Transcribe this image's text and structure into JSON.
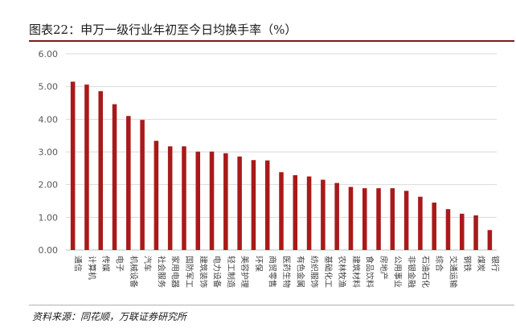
{
  "title": "图表22：申万一级行业年初至今日均换手率（%）",
  "source": "资料来源：同花顺，万联证券研究所",
  "colors": {
    "bar": "#a81a1a",
    "title_rule": "#7a1c1c",
    "grid": "#d9d9d9"
  },
  "chart_data": {
    "type": "bar",
    "title": "图表22：申万一级行业年初至今日均换手率（%）",
    "xlabel": "",
    "ylabel": "",
    "ylim": [
      0,
      6
    ],
    "yticks": [
      "0.00",
      "1.00",
      "2.00",
      "3.00",
      "4.00",
      "5.00",
      "6.00"
    ],
    "grid": true,
    "legend": "none",
    "categories": [
      "通信",
      "计算机",
      "传媒",
      "电子",
      "机械设备",
      "汽车",
      "社会服务",
      "家用电器",
      "国防军工",
      "建筑装饰",
      "电力设备",
      "轻工制造",
      "美容护理",
      "环保",
      "商贸零售",
      "医药生物",
      "有色金属",
      "纺织服饰",
      "基础化工",
      "农林牧渔",
      "建筑材料",
      "食品饮料",
      "房地产",
      "公用事业",
      "非银金融",
      "石油石化",
      "综合",
      "交通运输",
      "钢铁",
      "煤炭",
      "银行"
    ],
    "values": [
      5.15,
      5.06,
      4.86,
      4.46,
      4.1,
      3.98,
      3.34,
      3.17,
      3.17,
      3.01,
      3.01,
      2.96,
      2.86,
      2.75,
      2.74,
      2.38,
      2.29,
      2.25,
      2.15,
      2.05,
      1.93,
      1.89,
      1.89,
      1.89,
      1.81,
      1.63,
      1.45,
      1.25,
      1.11,
      1.06,
      0.61
    ]
  }
}
